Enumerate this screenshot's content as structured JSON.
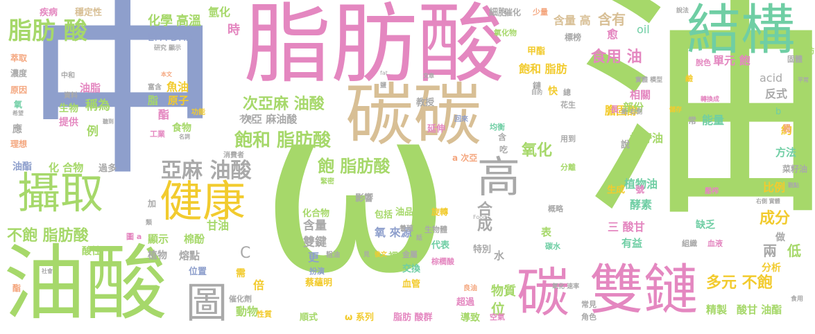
{
  "palette": {
    "green": "#a6d86a",
    "pink": "#e487c0",
    "blue": "#8e9fcc",
    "tan": "#d8bf95",
    "teal": "#6fcea4",
    "yellow": "#f2cb2e",
    "gray": "#a9a9a9",
    "orange": "#f4a67e"
  },
  "words": [
    {
      "text": "油",
      "color": "green"
    },
    {
      "text": "ω",
      "color": "green"
    },
    {
      "text": "中",
      "color": "blue"
    },
    {
      "text": "脂肪酸",
      "color": "pink"
    },
    {
      "text": "油酸",
      "color": "green"
    },
    {
      "text": "碳碳",
      "color": "tan"
    },
    {
      "text": "結構",
      "color": "teal"
    },
    {
      "text": "雙鏈",
      "color": "pink"
    },
    {
      "text": "碳",
      "color": "pink"
    },
    {
      "text": "攝取",
      "color": "green"
    },
    {
      "text": "健康",
      "color": "yellow"
    },
    {
      "text": "高",
      "color": "gray"
    },
    {
      "text": "圖",
      "color": "gray"
    },
    {
      "text": "脂肪 酸",
      "color": "green"
    },
    {
      "text": "亞麻 油酸",
      "color": "gray"
    },
    {
      "text": "飽和 脂肪酸",
      "color": "green"
    },
    {
      "text": "飽 脂肪酸",
      "color": "green"
    },
    {
      "text": "不飽 脂肪酸",
      "color": "green"
    },
    {
      "text": "次亞麻 油酸",
      "color": "green"
    },
    {
      "text": "食用 油",
      "color": "pink"
    },
    {
      "text": "氧化",
      "color": "green"
    },
    {
      "text": "多元 不飽",
      "color": "yellow"
    },
    {
      "text": "合成",
      "color": "gray"
    },
    {
      "text": "成分",
      "color": "yellow"
    },
    {
      "text": "含量 高",
      "color": "tan"
    },
    {
      "text": "含有",
      "color": "tan"
    },
    {
      "text": "化學",
      "color": "green"
    },
    {
      "text": "高溫",
      "color": "green"
    },
    {
      "text": "氫化",
      "color": "green"
    },
    {
      "text": "疾病",
      "color": "pink"
    },
    {
      "text": "穩定性",
      "color": "tan"
    },
    {
      "text": "EPA DHA",
      "color": "blue"
    },
    {
      "text": "時",
      "color": "pink"
    },
    {
      "text": "細胞",
      "color": "gray"
    },
    {
      "text": "催化",
      "color": "gray"
    },
    {
      "text": "少量",
      "color": "orange"
    },
    {
      "text": "甲酯",
      "color": "yellow"
    },
    {
      "text": "氧化物",
      "color": "green"
    },
    {
      "text": "標榜",
      "color": "gray"
    },
    {
      "text": "愈",
      "color": "pink"
    },
    {
      "text": "oil",
      "color": "teal"
    },
    {
      "text": "飽和 脂肪",
      "color": "yellow"
    },
    {
      "text": "脂肪",
      "color": "green"
    },
    {
      "text": "單元 飽",
      "color": "pink"
    },
    {
      "text": "脫色",
      "color": "pink"
    },
    {
      "text": "固體",
      "color": "gray"
    },
    {
      "text": "acid",
      "color": "gray"
    },
    {
      "text": "反式",
      "color": "gray"
    },
    {
      "text": "膽固醇",
      "color": "yellow"
    },
    {
      "text": "相關",
      "color": "pink"
    },
    {
      "text": "能量",
      "color": "teal"
    },
    {
      "text": "約",
      "color": "yellow"
    },
    {
      "text": "棉籽油",
      "color": "green"
    },
    {
      "text": "植物油",
      "color": "teal"
    },
    {
      "text": "比例",
      "color": "yellow"
    },
    {
      "text": "方法",
      "color": "teal"
    },
    {
      "text": "菜籽油",
      "color": "gray"
    },
    {
      "text": "酵素",
      "color": "teal"
    },
    {
      "text": "三 酸甘",
      "color": "pink"
    },
    {
      "text": "有益",
      "color": "teal"
    },
    {
      "text": "生成",
      "color": "yellow"
    },
    {
      "text": "號",
      "color": "pink"
    },
    {
      "text": "缺乏",
      "color": "teal"
    },
    {
      "text": "低",
      "color": "green"
    },
    {
      "text": "兩",
      "color": "gray"
    },
    {
      "text": "分析",
      "color": "yellow"
    },
    {
      "text": "精製",
      "color": "green"
    },
    {
      "text": "酸甘 油酯",
      "color": "green"
    },
    {
      "text": "物質",
      "color": "green"
    },
    {
      "text": "位",
      "color": "green"
    },
    {
      "text": "超過",
      "color": "pink"
    },
    {
      "text": "導致",
      "color": "green"
    },
    {
      "text": "雙鍵",
      "color": "gray"
    },
    {
      "text": "含量",
      "color": "gray"
    },
    {
      "text": "油品",
      "color": "green"
    },
    {
      "text": "氧 來源",
      "color": "blue"
    },
    {
      "text": "包括",
      "color": "green"
    },
    {
      "text": "影響",
      "color": "gray"
    },
    {
      "text": "化合物",
      "color": "green"
    },
    {
      "text": "代表",
      "color": "teal"
    },
    {
      "text": "特別",
      "color": "gray"
    },
    {
      "text": "交換",
      "color": "teal"
    },
    {
      "text": "血管",
      "color": "yellow"
    },
    {
      "text": "順式",
      "color": "green"
    },
    {
      "text": "ω 系列",
      "color": "yellow"
    },
    {
      "text": "脂肪 酸群",
      "color": "pink"
    },
    {
      "text": "動物",
      "color": "green"
    },
    {
      "text": "熔點",
      "color": "gray"
    },
    {
      "text": "位置",
      "color": "blue"
    },
    {
      "text": "倍",
      "color": "yellow"
    },
    {
      "text": "需",
      "color": "yellow"
    },
    {
      "text": "C",
      "color": "gray"
    },
    {
      "text": "顯示",
      "color": "green"
    },
    {
      "text": "植物",
      "color": "gray"
    },
    {
      "text": "棉酚",
      "color": "green"
    },
    {
      "text": "甘油",
      "color": "green"
    },
    {
      "text": "蔡蘊明",
      "color": "yellow"
    },
    {
      "text": "化 合物",
      "color": "green"
    },
    {
      "text": "過多",
      "color": "gray"
    },
    {
      "text": "稱為",
      "color": "green"
    },
    {
      "text": "例",
      "color": "green"
    },
    {
      "text": "生物",
      "color": "green"
    },
    {
      "text": "提供",
      "color": "pink"
    },
    {
      "text": "油脂",
      "color": "pink"
    },
    {
      "text": "中和",
      "color": "gray"
    },
    {
      "text": "資料",
      "color": "gray"
    },
    {
      "text": "魚油",
      "color": "yellow"
    },
    {
      "text": "原子",
      "color": "yellow"
    },
    {
      "text": "脂",
      "color": "green"
    },
    {
      "text": "酯",
      "color": "pink"
    },
    {
      "text": "食物",
      "color": "green"
    },
    {
      "text": "工業",
      "color": "pink"
    },
    {
      "text": "功能",
      "color": "yellow"
    },
    {
      "text": "富含",
      "color": "gray"
    },
    {
      "text": "酸性",
      "color": "green"
    },
    {
      "text": "油酯",
      "color": "blue"
    },
    {
      "text": "濃度",
      "color": "gray"
    },
    {
      "text": "原因",
      "color": "orange"
    },
    {
      "text": "萃取",
      "color": "orange"
    },
    {
      "text": "應",
      "color": "gray"
    },
    {
      "text": "理想",
      "color": "orange"
    },
    {
      "text": "氧",
      "color": "teal"
    },
    {
      "text": "加",
      "color": "gray"
    },
    {
      "text": "酯",
      "color": "orange"
    },
    {
      "text": "表",
      "color": "green"
    },
    {
      "text": "做",
      "color": "gray"
    },
    {
      "text": "血液",
      "color": "pink"
    },
    {
      "text": "組織",
      "color": "gray"
    },
    {
      "text": "水",
      "color": "gray"
    },
    {
      "text": "易",
      "color": "orange"
    },
    {
      "text": "b",
      "color": "teal"
    },
    {
      "text": "部份",
      "color": "green"
    },
    {
      "text": "長",
      "color": "pink"
    },
    {
      "text": "說",
      "color": "gray"
    },
    {
      "text": "延伸",
      "color": "pink"
    },
    {
      "text": "教授",
      "color": "gray"
    },
    {
      "text": "次亞 麻油酸",
      "color": "gray"
    },
    {
      "text": "快",
      "color": "yellow"
    },
    {
      "text": "總",
      "color": "gray"
    },
    {
      "text": "花生",
      "color": "gray"
    },
    {
      "text": "鹼",
      "color": "yellow"
    },
    {
      "text": "常",
      "color": "gray"
    },
    {
      "text": "鏈",
      "color": "gray"
    },
    {
      "text": "a 次亞",
      "color": "orange"
    },
    {
      "text": "吃",
      "color": "gray"
    },
    {
      "text": "含",
      "color": "gray"
    },
    {
      "text": "均衡",
      "color": "teal"
    },
    {
      "text": "用到",
      "color": "gray"
    },
    {
      "text": "分離",
      "color": "green"
    },
    {
      "text": "旋轉",
      "color": "yellow"
    },
    {
      "text": "棕櫚酸",
      "color": "pink"
    },
    {
      "text": "金屬",
      "color": "gray"
    },
    {
      "text": "生物體",
      "color": "gray"
    },
    {
      "text": "養殖",
      "color": "gray"
    },
    {
      "text": "概略",
      "color": "gray"
    },
    {
      "text": "碳水",
      "color": "teal"
    },
    {
      "text": "裡",
      "color": "green"
    },
    {
      "text": "更",
      "color": "blue"
    },
    {
      "text": "扮演",
      "color": "blue"
    },
    {
      "text": "粗油",
      "color": "gray"
    },
    {
      "text": "催化劑",
      "color": "gray"
    },
    {
      "text": "空氣",
      "color": "pink"
    },
    {
      "text": "常見",
      "color": "gray"
    },
    {
      "text": "角色",
      "color": "gray"
    },
    {
      "text": "食用",
      "color": "gray"
    },
    {
      "text": "良油",
      "color": "orange"
    },
    {
      "text": "消費者",
      "color": "gray"
    },
    {
      "text": "性質",
      "color": "yellow"
    },
    {
      "text": "圖 a",
      "color": "pink"
    },
    {
      "text": "不利",
      "color": "gray"
    },
    {
      "text": "回來",
      "color": "blue"
    },
    {
      "text": "緊密",
      "color": "green"
    },
    {
      "text": "實體 模型",
      "color": "gray"
    },
    {
      "text": "給 右側",
      "color": "gray"
    },
    {
      "text": "儲存",
      "color": "yellow"
    },
    {
      "text": "轉換成",
      "color": "pink"
    },
    {
      "text": "說法",
      "color": "gray"
    },
    {
      "text": "研究 顯示",
      "color": "gray"
    },
    {
      "text": "本文",
      "color": "orange"
    },
    {
      "text": "聽到",
      "color": "gray"
    },
    {
      "text": "名詞",
      "color": "gray"
    },
    {
      "text": "fat",
      "color": "gray"
    },
    {
      "text": "鹽",
      "color": "gray"
    },
    {
      "text": "文章",
      "color": "gray"
    },
    {
      "text": "目的",
      "color": "gray"
    },
    {
      "text": "觀點",
      "color": "gray"
    },
    {
      "text": "平常",
      "color": "gray"
    },
    {
      "text": "右側 實體",
      "color": "gray"
    },
    {
      "text": "壓榨",
      "color": "pink"
    },
    {
      "text": "氧化 速率",
      "color": "gray"
    },
    {
      "text": "Food",
      "color": "gray"
    },
    {
      "text": "希望",
      "color": "gray"
    },
    {
      "text": "社會",
      "color": "gray"
    },
    {
      "text": "類",
      "color": "gray"
    },
    {
      "text": "話",
      "color": "gray"
    },
    {
      "text": "後文",
      "color": "yellow"
    },
    {
      "text": "見",
      "color": "gray"
    }
  ]
}
